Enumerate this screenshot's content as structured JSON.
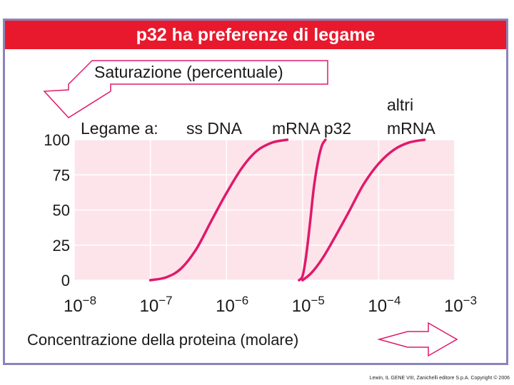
{
  "title": "p32 ha preferenze di legame",
  "credit": "Lewin, IL GENE VIII, Zanichelli editore S.p.A. Copyright © 2006",
  "colors": {
    "title_bg": "#e8192c",
    "curve": "#e0196b",
    "frame": "#8a84b8",
    "plot_bg": "#fde4ea",
    "grid": "#ffffff"
  },
  "chart_data": {
    "type": "line",
    "title": "p32 ha preferenze di legame",
    "xlabel": "Concentrazione della proteina (molare)",
    "ylabel": "Saturazione (percentuale)",
    "x_scale": "log",
    "xlim": [
      1e-08,
      0.001
    ],
    "ylim": [
      0,
      100
    ],
    "x_ticks": [
      {
        "value": 1e-08,
        "base": "10",
        "exp": "−8"
      },
      {
        "value": 1e-07,
        "base": "10",
        "exp": "−7"
      },
      {
        "value": 1e-06,
        "base": "10",
        "exp": "−6"
      },
      {
        "value": 1e-05,
        "base": "10",
        "exp": "−5"
      },
      {
        "value": 0.0001,
        "base": "10",
        "exp": "−4"
      },
      {
        "value": 0.001,
        "base": "10",
        "exp": "−3"
      }
    ],
    "y_ticks": [
      "0",
      "25",
      "50",
      "75",
      "100"
    ],
    "grid": true,
    "legend_prefix": "Legame a:",
    "series": [
      {
        "name": "ss DNA",
        "label": "ss DNA",
        "x": [
          1e-07,
          1.6e-07,
          2.5e-07,
          4e-07,
          6.3e-07,
          1e-06,
          1.6e-06,
          2.5e-06,
          4e-06,
          6.3e-06
        ],
        "y": [
          0,
          2,
          8,
          22,
          42,
          62,
          80,
          92,
          98,
          100
        ]
      },
      {
        "name": "mRNA p32",
        "label": "mRNA p32",
        "x": [
          9e-06,
          1e-05,
          1.1e-05,
          1.25e-05,
          1.4e-05,
          1.6e-05,
          1.8e-05,
          2e-05
        ],
        "y": [
          0,
          3,
          15,
          40,
          65,
          85,
          96,
          100
        ]
      },
      {
        "name": "altri mRNA",
        "label_line1": "altri",
        "label_line2": "mRNA",
        "x": [
          1e-05,
          1.3e-05,
          1.8e-05,
          2.5e-05,
          4e-05,
          6.3e-05,
          0.0001,
          0.00016,
          0.00025,
          0.0004
        ],
        "y": [
          0,
          5,
          15,
          28,
          48,
          68,
          83,
          93,
          98,
          100
        ]
      }
    ]
  }
}
